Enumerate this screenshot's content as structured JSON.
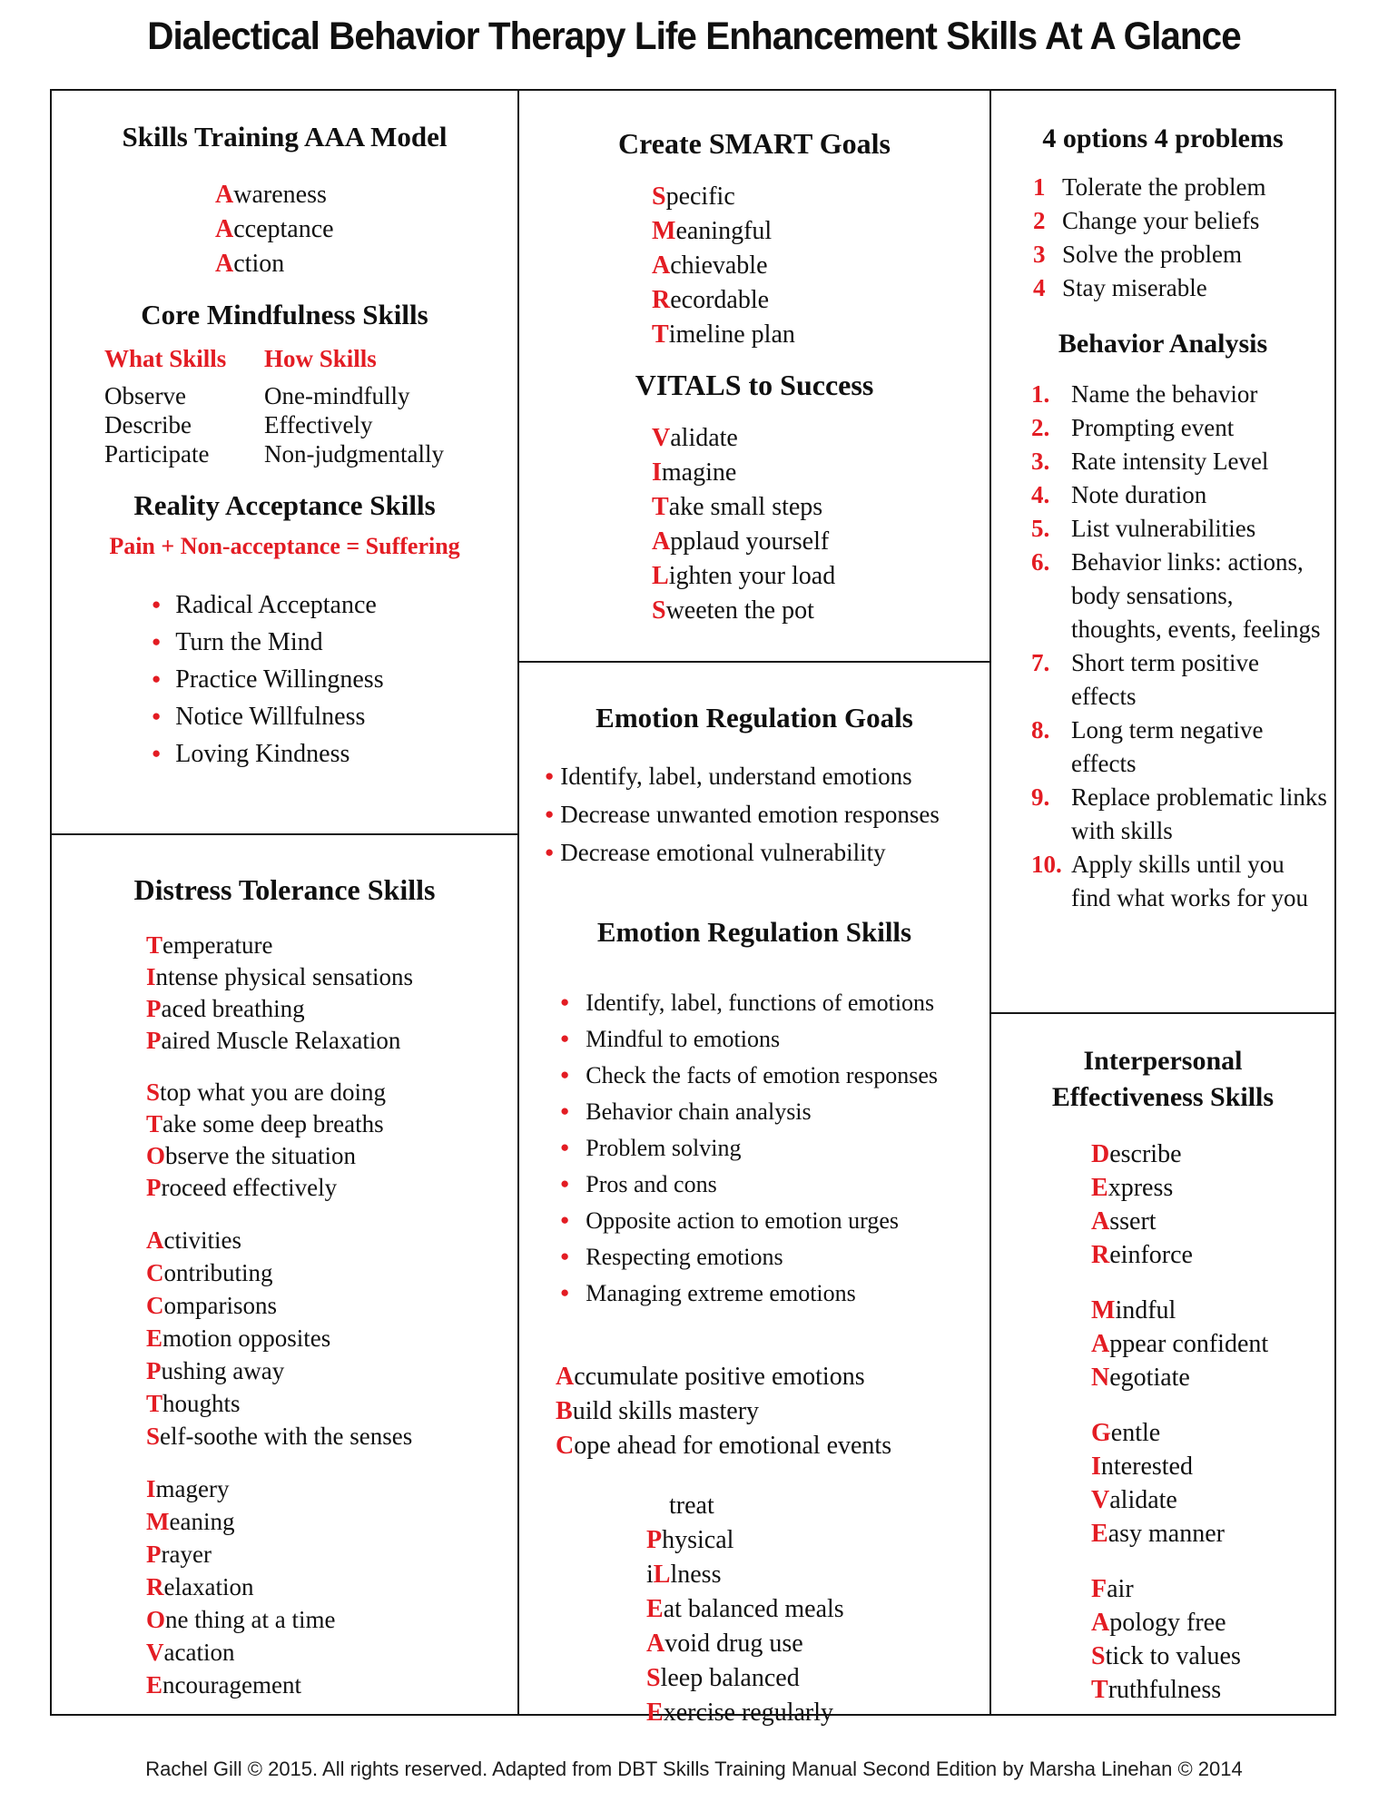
{
  "title": "Dialectical Behavior Therapy Life Enhancement Skills At A Glance",
  "footer": "Rachel Gill © 2015. All rights reserved. Adapted from DBT Skills Training Manual Second Edition by Marsha Linehan © 2014",
  "colors": {
    "accent": "#e31c23",
    "text": "#101010",
    "background": "#ffffff"
  },
  "aaa": {
    "heading": "Skills Training AAA Model",
    "items": [
      {
        "lead": "A",
        "rest": "wareness"
      },
      {
        "lead": "A",
        "rest": "cceptance"
      },
      {
        "lead": "A",
        "rest": "ction"
      }
    ]
  },
  "mindfulness": {
    "heading": "Core Mindfulness Skills",
    "what_label": "What Skills",
    "how_label": "How Skills",
    "what": [
      "Observe",
      "Describe",
      "Participate"
    ],
    "how": [
      "One-mindfully",
      "Effectively",
      "Non-judgmentally"
    ]
  },
  "reality": {
    "heading": "Reality Acceptance Skills",
    "formula": "Pain + Non-acceptance = Suffering",
    "bullets": [
      "Radical Acceptance",
      "Turn the Mind",
      "Practice Willingness",
      "Notice Willfulness",
      "Loving Kindness"
    ]
  },
  "distress": {
    "heading": "Distress Tolerance Skills",
    "groups": [
      [
        {
          "lead": "T",
          "rest": "emperature"
        },
        {
          "lead": "I",
          "rest": "ntense physical sensations"
        },
        {
          "lead": "P",
          "rest": "aced breathing"
        },
        {
          "lead": "P",
          "rest": "aired Muscle Relaxation"
        }
      ],
      [
        {
          "lead": "S",
          "rest": "top what you are doing"
        },
        {
          "lead": "T",
          "rest": "ake some deep breaths"
        },
        {
          "lead": "O",
          "rest": "bserve the situation"
        },
        {
          "lead": "P",
          "rest": "roceed effectively"
        }
      ],
      [
        {
          "lead": "A",
          "rest": "ctivities"
        },
        {
          "lead": "C",
          "rest": "ontributing"
        },
        {
          "lead": "C",
          "rest": "omparisons"
        },
        {
          "lead": "E",
          "rest": "motion opposites"
        },
        {
          "lead": "P",
          "rest": "ushing away"
        },
        {
          "lead": "T",
          "rest": "houghts"
        },
        {
          "lead": "S",
          "rest": "elf-soothe with the senses"
        }
      ],
      [
        {
          "lead": "I",
          "rest": "magery"
        },
        {
          "lead": "M",
          "rest": "eaning"
        },
        {
          "lead": "P",
          "rest": "rayer"
        },
        {
          "lead": "R",
          "rest": "elaxation"
        },
        {
          "lead": "O",
          "rest": "ne thing at a time"
        },
        {
          "lead": "V",
          "rest": "acation"
        },
        {
          "lead": "E",
          "rest": "ncouragement"
        }
      ]
    ]
  },
  "smart": {
    "heading": "Create SMART Goals",
    "items": [
      {
        "lead": "S",
        "rest": "pecific"
      },
      {
        "lead": "M",
        "rest": "eaningful"
      },
      {
        "lead": "A",
        "rest": "chievable"
      },
      {
        "lead": "R",
        "rest": "ecordable"
      },
      {
        "lead": "T",
        "rest": "imeline plan"
      }
    ]
  },
  "vitals": {
    "heading": "VITALS to Success",
    "items": [
      {
        "lead": "V",
        "rest": "alidate"
      },
      {
        "lead": "I",
        "rest": "magine"
      },
      {
        "lead": "T",
        "rest": "ake small steps"
      },
      {
        "lead": "A",
        "rest": "pplaud yourself"
      },
      {
        "lead": "L",
        "rest": "ighten your load"
      },
      {
        "lead": "S",
        "rest": "weeten the pot"
      }
    ]
  },
  "emotion_goals": {
    "heading": "Emotion Regulation Goals",
    "bullets": [
      "Identify, label, understand emotions",
      "Decrease unwanted emotion responses",
      "Decrease emotional vulnerability"
    ]
  },
  "emotion_skills": {
    "heading": "Emotion Regulation Skills",
    "bullets": [
      "Identify, label, functions of emotions",
      "Mindful to emotions",
      "Check the facts of emotion responses",
      "Behavior chain analysis",
      "Problem solving",
      "Pros and cons",
      "Opposite action to emotion urges",
      "Respecting emotions",
      "Managing extreme emotions"
    ],
    "abc": [
      {
        "lead": "A",
        "rest": "ccumulate positive emotions"
      },
      {
        "lead": "B",
        "rest": "uild skills mastery"
      },
      {
        "lead": "C",
        "rest": "ope ahead for emotional events"
      }
    ],
    "please": [
      {
        "rest": "treat"
      },
      {
        "lead": "P",
        "rest": "hysical"
      },
      {
        "pre": "i",
        "lead": "L",
        "rest": "lness"
      },
      {
        "lead": "E",
        "rest": "at balanced meals"
      },
      {
        "lead": "A",
        "rest": "void drug use"
      },
      {
        "lead": "S",
        "rest": "leep balanced"
      },
      {
        "lead": "E",
        "rest": "xercise regularly"
      }
    ]
  },
  "options": {
    "heading": "4 options 4 problems",
    "items": [
      {
        "num": "1",
        "text": "Tolerate the problem"
      },
      {
        "num": "2",
        "text": "Change your beliefs"
      },
      {
        "num": "3",
        "text": "Solve the problem"
      },
      {
        "num": "4",
        "text": "Stay miserable"
      }
    ]
  },
  "behavior": {
    "heading": "Behavior Analysis",
    "items": [
      {
        "num": "1.",
        "text": "Name the behavior"
      },
      {
        "num": "2.",
        "text": "Prompting event"
      },
      {
        "num": "3.",
        "text": "Rate intensity Level"
      },
      {
        "num": "4.",
        "text": "Note duration"
      },
      {
        "num": "5.",
        "text": "List vulnerabilities"
      },
      {
        "num": "6.",
        "text": "Behavior links: actions, body sensations, thoughts, events, feelings"
      },
      {
        "num": "7.",
        "text": "Short term positive effects"
      },
      {
        "num": "8.",
        "text": "Long term negative effects"
      },
      {
        "num": "9.",
        "text": "Replace problematic links with skills"
      },
      {
        "num": "10.",
        "text": "Apply skills until you find what works for you"
      }
    ]
  },
  "interpersonal": {
    "heading_line1": "Interpersonal",
    "heading_line2": "Effectiveness Skills",
    "groups": [
      [
        {
          "lead": "D",
          "rest": "escribe"
        },
        {
          "lead": "E",
          "rest": "xpress"
        },
        {
          "lead": "A",
          "rest": "ssert"
        },
        {
          "lead": "R",
          "rest": "einforce"
        }
      ],
      [
        {
          "lead": "M",
          "rest": "indful"
        },
        {
          "lead": "A",
          "rest": "ppear confident"
        },
        {
          "lead": "N",
          "rest": "egotiate"
        }
      ],
      [
        {
          "lead": "G",
          "rest": "entle"
        },
        {
          "lead": "I",
          "rest": "nterested"
        },
        {
          "lead": "V",
          "rest": "alidate"
        },
        {
          "lead": "E",
          "rest": "asy manner"
        }
      ],
      [
        {
          "lead": "F",
          "rest": "air"
        },
        {
          "lead": "A",
          "rest": "pology free"
        },
        {
          "lead": "S",
          "rest": "tick to values"
        },
        {
          "lead": "T",
          "rest": "ruthfulness"
        }
      ]
    ]
  }
}
